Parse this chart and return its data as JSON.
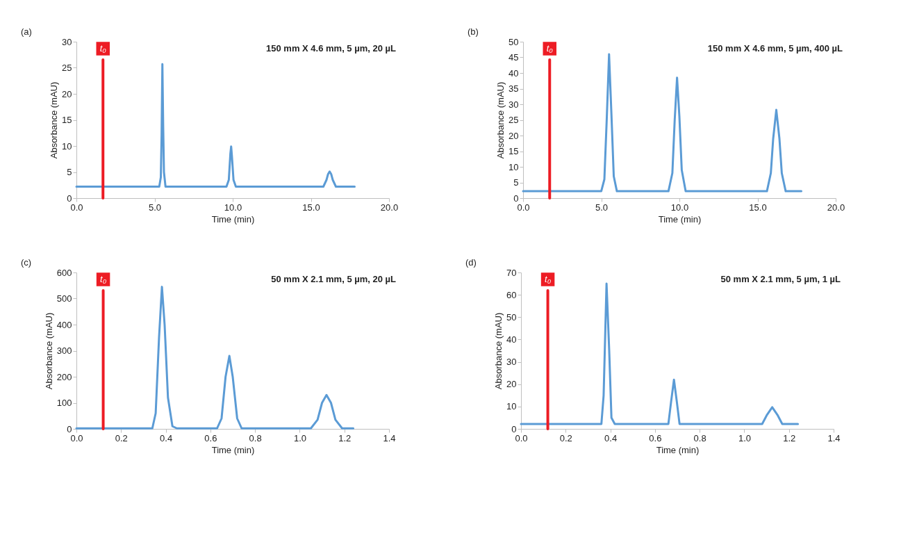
{
  "chart_data": [
    {
      "type": "line",
      "annotations": [
        "(a)",
        "150 mm X 4.6 mm, 5 µm, 20 µL"
      ],
      "xlabel": "Time (min)",
      "ylabel": "Absorbance (mAU)",
      "grid": false,
      "marker": "none",
      "line_style": "solid",
      "xlim": [
        0,
        20
      ],
      "xticks": [
        {
          "value": 0,
          "label": "0.0"
        },
        {
          "value": 5,
          "label": "5.0"
        },
        {
          "value": 10,
          "label": "10.0"
        },
        {
          "value": 15,
          "label": "15.0"
        },
        {
          "value": 20,
          "label": "20.0"
        }
      ],
      "ylim": [
        0,
        30
      ],
      "yticks": [
        0,
        5,
        10,
        15,
        20,
        25,
        30
      ],
      "ref_lines": [
        {
          "axis": "x",
          "value": 1.7,
          "label": "t₀",
          "color": "#ed1c24"
        }
      ],
      "series": [
        {
          "color": "#5b9bd5",
          "x": [
            0,
            5.3,
            5.4,
            5.45,
            5.5,
            5.55,
            5.6,
            5.7,
            9.6,
            9.75,
            9.85,
            9.9,
            9.95,
            10.05,
            10.2,
            15.8,
            16.0,
            16.1,
            16.2,
            16.3,
            16.4,
            16.6,
            17.8
          ],
          "values": [
            2.2,
            2.2,
            4,
            12,
            25.7,
            14,
            5,
            2.2,
            2.2,
            3.5,
            8.5,
            9.9,
            8,
            3.5,
            2.2,
            2.2,
            3.5,
            4.6,
            5.1,
            4.6,
            3.5,
            2.2,
            2.2
          ]
        }
      ]
    },
    {
      "type": "line",
      "annotations": [
        "(b)",
        "150 mm X 4.6 mm, 5 µm, 400 µL"
      ],
      "xlabel": "Time (min)",
      "ylabel": "Absorbance (mAU)",
      "grid": false,
      "marker": "none",
      "line_style": "solid",
      "xlim": [
        0,
        20
      ],
      "xticks": [
        {
          "value": 0,
          "label": "0.0"
        },
        {
          "value": 5,
          "label": "5.0"
        },
        {
          "value": 10,
          "label": "10.0"
        },
        {
          "value": 15,
          "label": "15.0"
        },
        {
          "value": 20,
          "label": "20.0"
        }
      ],
      "ylim": [
        0,
        50
      ],
      "yticks": [
        0,
        5,
        10,
        15,
        20,
        25,
        30,
        35,
        40,
        45,
        50
      ],
      "ref_lines": [
        {
          "axis": "x",
          "value": 1.7,
          "label": "t₀",
          "color": "#ed1c24"
        }
      ],
      "series": [
        {
          "color": "#5b9bd5",
          "x": [
            0,
            5.0,
            5.2,
            5.35,
            5.5,
            5.65,
            5.8,
            6.0,
            9.3,
            9.55,
            9.7,
            9.85,
            10.0,
            10.15,
            10.4,
            15.6,
            15.85,
            16.0,
            16.2,
            16.4,
            16.55,
            16.8,
            17.8
          ],
          "values": [
            2.2,
            2.2,
            6,
            25,
            46,
            27,
            7,
            2.2,
            2.2,
            8,
            25,
            38.5,
            26,
            9,
            2.2,
            2.2,
            8,
            19,
            28.2,
            19,
            8,
            2.2,
            2.2
          ]
        }
      ]
    },
    {
      "type": "line",
      "annotations": [
        "(c)",
        "50 mm X 2.1 mm, 5 µm, 20 µL"
      ],
      "xlabel": "Time (min)",
      "ylabel": "Absorbance (mAU)",
      "grid": false,
      "marker": "none",
      "line_style": "solid",
      "xlim": [
        0,
        1.4
      ],
      "xticks": [
        {
          "value": 0,
          "label": "0.0"
        },
        0.2,
        0.4,
        0.6,
        0.8,
        {
          "value": 1,
          "label": "1.0"
        },
        1.2,
        1.4
      ],
      "ylim": [
        0,
        600
      ],
      "yticks": [
        0,
        100,
        200,
        300,
        400,
        500,
        600
      ],
      "ref_lines": [
        {
          "axis": "x",
          "value": 0.12,
          "label": "t₀",
          "color": "#ed1c24"
        }
      ],
      "series": [
        {
          "color": "#5b9bd5",
          "x": [
            0,
            0.34,
            0.355,
            0.37,
            0.383,
            0.395,
            0.41,
            0.43,
            0.45,
            0.63,
            0.65,
            0.668,
            0.685,
            0.7,
            0.72,
            0.74,
            1.05,
            1.08,
            1.1,
            1.12,
            1.14,
            1.16,
            1.19,
            1.24
          ],
          "values": [
            2,
            2,
            60,
            350,
            545,
            400,
            120,
            10,
            2,
            2,
            40,
            200,
            280,
            200,
            40,
            2,
            2,
            35,
            100,
            130,
            100,
            35,
            2,
            2
          ]
        }
      ]
    },
    {
      "type": "line",
      "annotations": [
        "(d)",
        "50 mm X 2.1 mm, 5 µm, 1 µL"
      ],
      "xlabel": "Time (min)",
      "ylabel": "Absorbance (mAU)",
      "grid": false,
      "marker": "none",
      "line_style": "solid",
      "xlim": [
        0,
        1.4
      ],
      "xticks": [
        {
          "value": 0,
          "label": "0.0"
        },
        0.2,
        0.4,
        0.6,
        0.8,
        {
          "value": 1,
          "label": "1.0"
        },
        1.2,
        1.4
      ],
      "ylim": [
        0,
        70
      ],
      "yticks": [
        0,
        10,
        20,
        30,
        40,
        50,
        60,
        70
      ],
      "ref_lines": [
        {
          "axis": "x",
          "value": 0.12,
          "label": "t₀",
          "color": "#ed1c24"
        }
      ],
      "series": [
        {
          "color": "#5b9bd5",
          "x": [
            0,
            0.36,
            0.37,
            0.383,
            0.395,
            0.405,
            0.42,
            0.66,
            0.672,
            0.685,
            0.698,
            0.71,
            1.08,
            1.1,
            1.125,
            1.15,
            1.17,
            1.24
          ],
          "values": [
            2.2,
            2.2,
            15,
            65,
            35,
            5,
            2.2,
            2.2,
            12,
            22,
            12,
            2.2,
            2.2,
            6,
            9.7,
            6,
            2.2,
            2.2
          ]
        }
      ]
    }
  ]
}
